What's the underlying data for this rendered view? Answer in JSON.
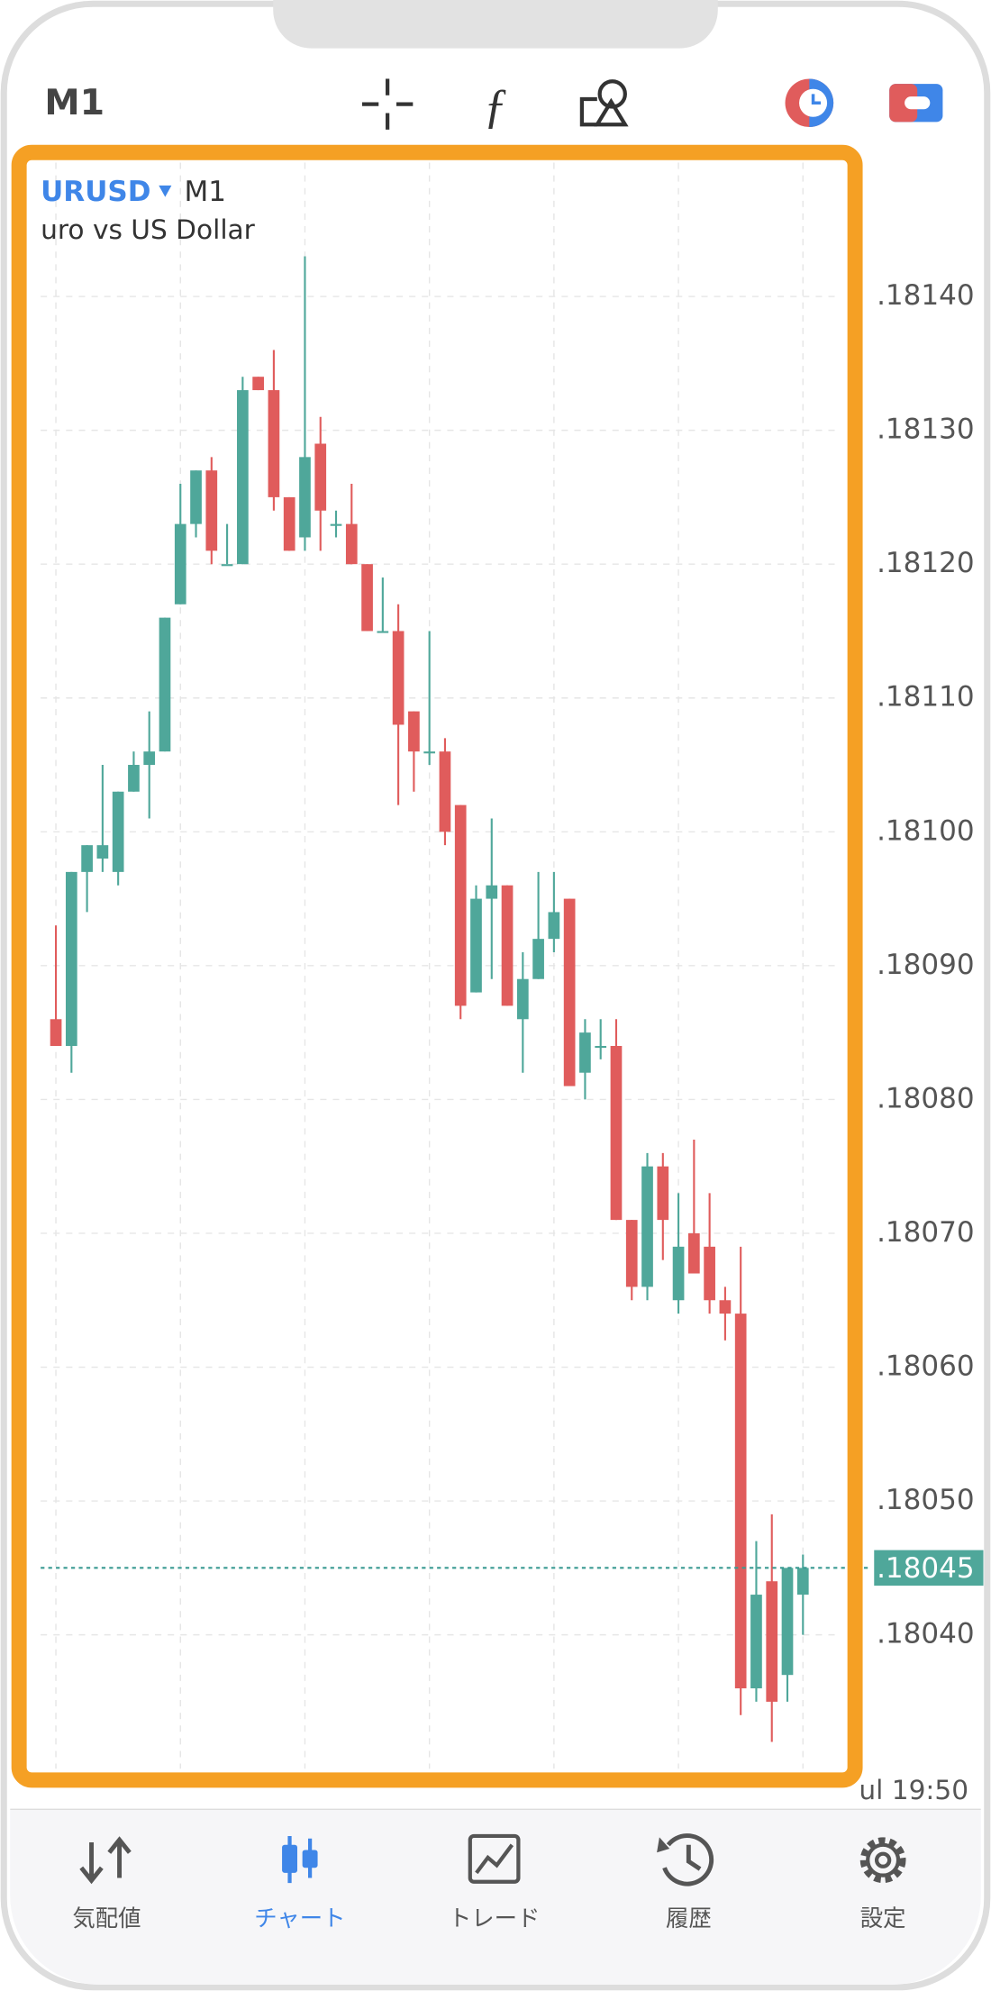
{
  "toolbar": {
    "timeframe": "M1"
  },
  "chart_data": {
    "type": "candlestick",
    "symbol": "URUSD",
    "timeframe": "M1",
    "description": "uro vs US Dollar",
    "open": [
      1.18086,
      1.18084,
      1.18097,
      1.18098,
      1.18097,
      1.18103,
      1.18105,
      1.18106,
      1.18117,
      1.18123,
      1.18127,
      1.1812,
      1.1812,
      1.18134,
      1.18133,
      1.18125,
      1.18122,
      1.18129,
      1.18123,
      1.18123,
      1.1812,
      1.18115,
      1.18115,
      1.18109,
      1.18106,
      1.18106,
      1.18102,
      1.18088,
      1.18095,
      1.18096,
      1.18086,
      1.18089,
      1.18092,
      1.18095,
      1.18082,
      1.18084,
      1.18084,
      1.18071,
      1.18066,
      1.18075,
      1.18065,
      1.1807,
      1.18069,
      1.18065,
      1.18064,
      1.18036,
      1.18044,
      1.18037,
      1.18043
    ],
    "high": [
      1.18093,
      1.18097,
      1.18099,
      1.18105,
      1.18103,
      1.18106,
      1.18109,
      1.18116,
      1.18126,
      1.18127,
      1.18128,
      1.18123,
      1.18134,
      1.18134,
      1.18136,
      1.18125,
      1.18143,
      1.18131,
      1.18124,
      1.18126,
      1.1812,
      1.18119,
      1.18117,
      1.18109,
      1.18115,
      1.18107,
      1.18102,
      1.18096,
      1.18101,
      1.18096,
      1.18091,
      1.18097,
      1.18097,
      1.18095,
      1.18086,
      1.18086,
      1.18086,
      1.18071,
      1.18076,
      1.18076,
      1.18073,
      1.18077,
      1.18073,
      1.18066,
      1.18069,
      1.18047,
      1.18049,
      1.18045,
      1.18046
    ],
    "low": [
      1.18084,
      1.18082,
      1.18094,
      1.18097,
      1.18096,
      1.18103,
      1.18101,
      1.18106,
      1.18117,
      1.18122,
      1.1812,
      1.1812,
      1.1812,
      1.18133,
      1.18124,
      1.18121,
      1.18121,
      1.18121,
      1.18122,
      1.1812,
      1.18115,
      1.18115,
      1.18102,
      1.18103,
      1.18105,
      1.18099,
      1.18086,
      1.18088,
      1.18089,
      1.18087,
      1.18082,
      1.18089,
      1.18091,
      1.18081,
      1.1808,
      1.18083,
      1.18071,
      1.18065,
      1.18065,
      1.18068,
      1.18064,
      1.18067,
      1.18064,
      1.18062,
      1.18034,
      1.18035,
      1.18032,
      1.18035,
      1.1804
    ],
    "close": [
      1.18084,
      1.18097,
      1.18099,
      1.18099,
      1.18103,
      1.18105,
      1.18106,
      1.18116,
      1.18123,
      1.18127,
      1.18121,
      1.1812,
      1.18133,
      1.18133,
      1.18125,
      1.18121,
      1.18128,
      1.18124,
      1.18123,
      1.1812,
      1.18115,
      1.18115,
      1.18108,
      1.18106,
      1.18106,
      1.181,
      1.18087,
      1.18095,
      1.18096,
      1.18087,
      1.18089,
      1.18092,
      1.18094,
      1.18081,
      1.18085,
      1.18084,
      1.18071,
      1.18066,
      1.18075,
      1.18071,
      1.18069,
      1.18067,
      1.18065,
      1.18064,
      1.18036,
      1.18043,
      1.18035,
      1.18045,
      1.18045
    ],
    "up_color": "#4fa79a",
    "down_color": "#e05c5c",
    "ylim": [
      1.1803,
      1.1815
    ],
    "yticks": [
      {
        "value": 1.1804,
        "label": ".18040"
      },
      {
        "value": 1.1805,
        "label": ".18050"
      },
      {
        "value": 1.1806,
        "label": ".18060"
      },
      {
        "value": 1.1807,
        "label": ".18070"
      },
      {
        "value": 1.1808,
        "label": ".18080"
      },
      {
        "value": 1.1809,
        "label": ".18090"
      },
      {
        "value": 1.181,
        "label": ".18100"
      },
      {
        "value": 1.1811,
        "label": ".18110"
      },
      {
        "value": 1.1812,
        "label": ".18120"
      },
      {
        "value": 1.1813,
        "label": ".18130"
      },
      {
        "value": 1.1814,
        "label": ".18140"
      }
    ],
    "grid": true,
    "last_price": {
      "value": 1.18045,
      "label": ".18045"
    },
    "x_label": "ul 19:50"
  },
  "tabs": [
    "気配値",
    "チャート",
    "トレード",
    "履歴",
    "設定"
  ]
}
